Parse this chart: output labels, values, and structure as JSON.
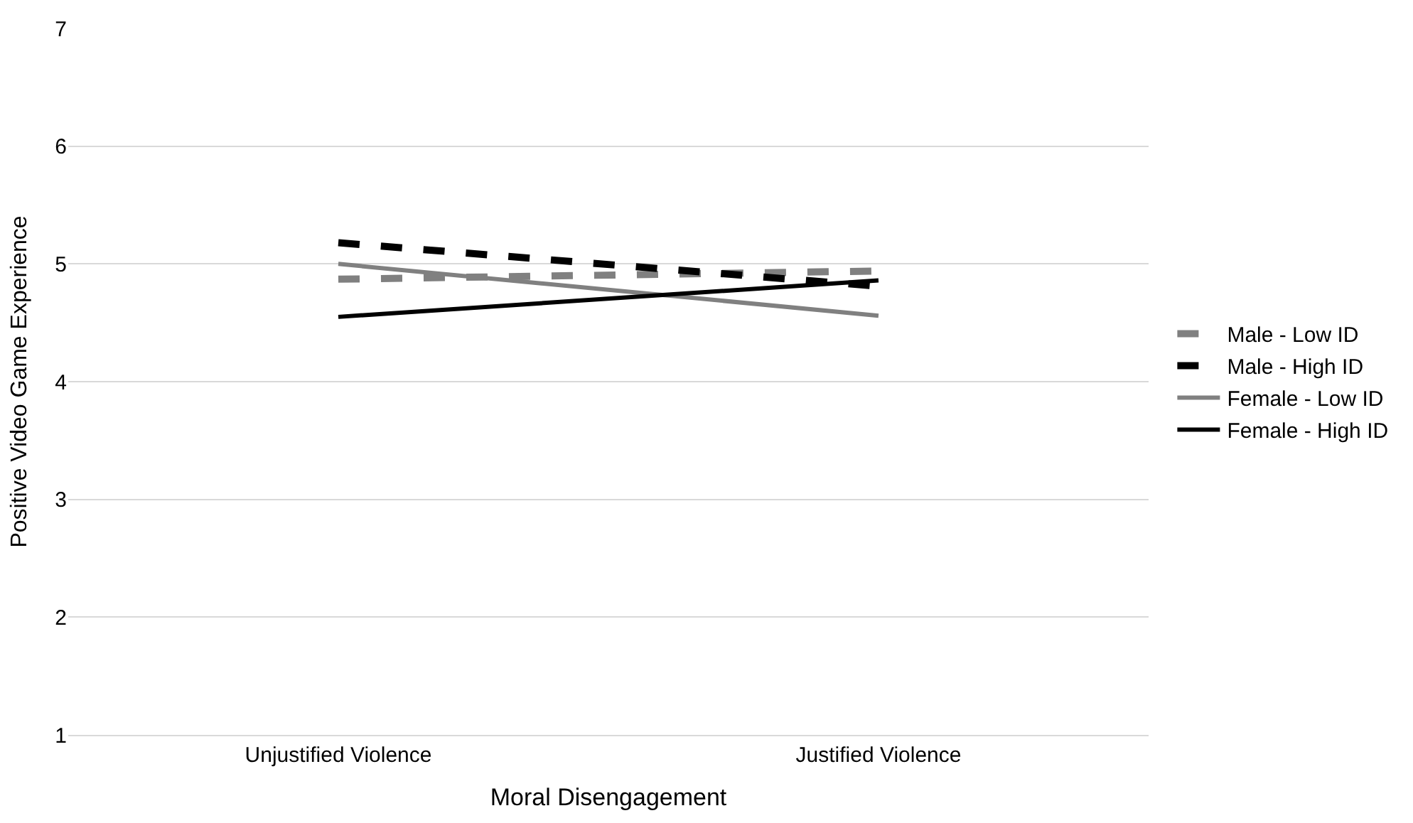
{
  "chart_data": {
    "type": "line",
    "xlabel": "Moral Disengagement",
    "ylabel": "Positive Video Game Experience",
    "categories": [
      "Unjustified Violence",
      "Justified Violence"
    ],
    "series": [
      {
        "name": "Male - Low ID",
        "color": "#808080",
        "line_style": "dashed",
        "values": [
          4.87,
          4.94
        ]
      },
      {
        "name": "Male - High ID",
        "color": "#000000",
        "line_style": "dashed",
        "values": [
          5.18,
          4.81
        ]
      },
      {
        "name": "Female - Low ID",
        "color": "#808080",
        "line_style": "solid",
        "values": [
          5.0,
          4.56
        ]
      },
      {
        "name": "Female - High ID",
        "color": "#000000",
        "line_style": "solid",
        "values": [
          4.55,
          4.86
        ]
      }
    ],
    "ylim": [
      1,
      7
    ],
    "yticks": [
      1,
      2,
      3,
      4,
      5,
      6,
      7
    ],
    "grid": "y",
    "legend": "right",
    "marker": "none"
  }
}
